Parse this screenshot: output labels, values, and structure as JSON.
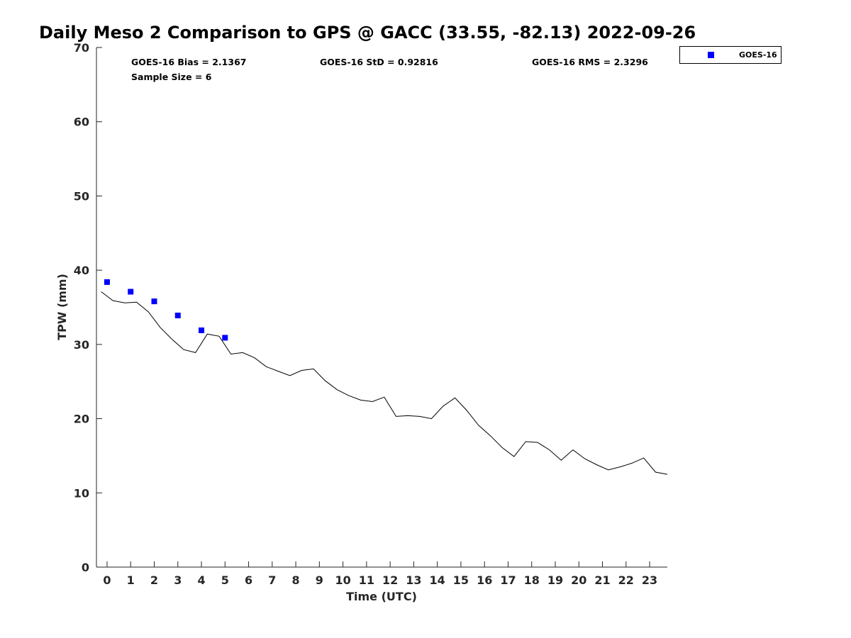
{
  "chart_data": {
    "type": "line",
    "title": "Daily Meso 2 Comparison to GPS @ GACC (33.55, -82.13) 2022-09-26",
    "xlabel": "Time (UTC)",
    "ylabel": "TPW (mm)",
    "xlim": [
      -0.45,
      23.75
    ],
    "ylim": [
      0,
      70
    ],
    "xticks": [
      0,
      1,
      2,
      3,
      4,
      5,
      6,
      7,
      8,
      9,
      10,
      11,
      12,
      13,
      14,
      15,
      16,
      17,
      18,
      19,
      20,
      21,
      22,
      23
    ],
    "yticks": [
      0,
      10,
      20,
      30,
      40,
      50,
      60,
      70
    ],
    "grid": false,
    "legend_position": "top-right outside",
    "stats": {
      "bias": "GOES-16 Bias = 2.1367",
      "std": "GOES-16 StD = 0.92816",
      "rms": "GOES-16 RMS = 2.3296",
      "sample": "Sample Size = 6"
    },
    "series": [
      {
        "name": "GPS",
        "style": "line",
        "color": "#000000",
        "x": [
          -0.25,
          0.25,
          0.75,
          1.25,
          1.75,
          2.25,
          2.75,
          3.25,
          3.75,
          4.25,
          4.75,
          5.25,
          5.75,
          6.25,
          6.75,
          7.25,
          7.75,
          8.25,
          8.75,
          9.25,
          9.75,
          10.25,
          10.75,
          11.25,
          11.75,
          12.25,
          12.75,
          13.25,
          13.75,
          14.25,
          14.75,
          15.25,
          15.75,
          16.25,
          16.75,
          17.25,
          17.75,
          18.25,
          18.75,
          19.25,
          19.75,
          20.25,
          20.75,
          21.25,
          21.75,
          22.25,
          22.75,
          23.25,
          23.75
        ],
        "y": [
          37.1,
          35.9,
          35.6,
          35.7,
          34.4,
          32.3,
          30.7,
          29.3,
          28.9,
          31.4,
          31.1,
          28.7,
          28.9,
          28.2,
          27.0,
          26.4,
          25.8,
          26.5,
          26.7,
          25.1,
          23.9,
          23.1,
          22.5,
          22.3,
          22.9,
          20.3,
          20.4,
          20.3,
          20.0,
          21.7,
          22.8,
          21.1,
          19.1,
          17.7,
          16.1,
          14.9,
          16.9,
          16.8,
          15.8,
          14.4,
          15.8,
          14.6,
          13.8,
          13.1,
          13.5,
          14.0,
          14.7,
          12.8,
          12.5
        ]
      },
      {
        "name": "GOES-16",
        "style": "marker",
        "color": "#0000ff",
        "x": [
          0,
          1,
          2,
          3,
          4,
          5
        ],
        "y": [
          38.4,
          37.1,
          35.8,
          33.9,
          31.9,
          30.9
        ]
      }
    ],
    "legend": [
      "GOES-16"
    ]
  }
}
